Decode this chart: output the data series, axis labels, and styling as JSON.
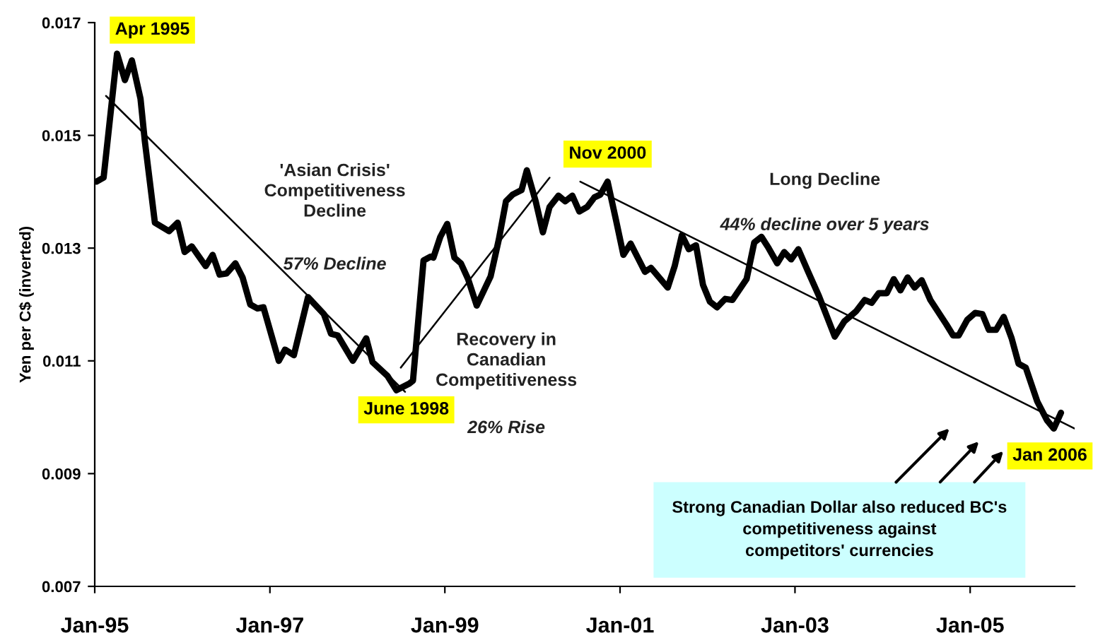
{
  "chart_data": {
    "type": "line",
    "ylabel": "Yen per C$ (inverted)",
    "xlim": [
      "1995-01-01",
      "2006-03-13"
    ],
    "xticks": [
      {
        "value": "1995-01-01",
        "label": "Jan-95"
      },
      {
        "value": "1997-01-01",
        "label": "Jan-97"
      },
      {
        "value": "1999-01-01",
        "label": "Jan-99"
      },
      {
        "value": "2001-01-01",
        "label": "Jan-01"
      },
      {
        "value": "2003-01-01",
        "label": "Jan-03"
      },
      {
        "value": "2005-01-01",
        "label": "Jan-05"
      }
    ],
    "ylim": [
      0.007,
      0.017
    ],
    "yticks": [
      0.007,
      0.009,
      0.011,
      0.013,
      0.015,
      0.017
    ],
    "grid": false,
    "legend": false,
    "marker": "none",
    "line_style": "solid",
    "series": [
      {
        "color": "#000000",
        "x": [
          "1995-01-08",
          "1995-02-07",
          "1995-04-04",
          "1995-05-07",
          "1995-06-05",
          "1995-07-11",
          "1995-07-29",
          "1995-09-09",
          "1995-11-07",
          "1995-12-13",
          "1996-01-11",
          "1996-02-10",
          "1996-04-08",
          "1996-05-07",
          "1996-06-05",
          "1996-07-04",
          "1996-08-10",
          "1996-09-09",
          "1996-10-11",
          "1996-11-10",
          "1996-12-05",
          "1997-02-07",
          "1997-03-05",
          "1997-04-11",
          "1997-06-09",
          "1997-08-14",
          "1997-09-13",
          "1997-10-11",
          "1997-12-13",
          "1998-02-07",
          "1998-03-05",
          "1998-05-07",
          "1998-06-13",
          "1998-08-07",
          "1998-08-21",
          "1998-10-04",
          "1998-11-03",
          "1998-11-14",
          "1998-12-13",
          "1999-01-11",
          "1999-02-10",
          "1999-03-09",
          "1999-04-08",
          "1999-05-14",
          "1999-07-11",
          "1999-08-14",
          "1999-09-13",
          "1999-10-11",
          "1999-11-17",
          "1999-12-09",
          "2000-01-15",
          "2000-02-14",
          "2000-03-13",
          "2000-04-19",
          "2000-05-17",
          "2000-06-16",
          "2000-07-15",
          "2000-08-17",
          "2000-09-16",
          "2000-10-11",
          "2000-11-10",
          "2000-12-16",
          "2001-01-15",
          "2001-02-14",
          "2001-03-16",
          "2001-04-15",
          "2001-05-10",
          "2001-07-19",
          "2001-08-17",
          "2001-09-16",
          "2001-10-15",
          "2001-11-14",
          "2001-12-13",
          "2002-01-11",
          "2002-02-10",
          "2002-03-16",
          "2002-04-15",
          "2002-06-13",
          "2002-07-15",
          "2002-08-14",
          "2002-09-13",
          "2002-10-19",
          "2002-11-17",
          "2002-12-16",
          "2003-01-15",
          "2003-02-25",
          "2003-04-11",
          "2003-06-16",
          "2003-07-26",
          "2003-09-13",
          "2003-10-19",
          "2003-11-17",
          "2003-12-16",
          "2004-01-19",
          "2004-02-17",
          "2004-03-16",
          "2004-04-15",
          "2004-05-14",
          "2004-06-13",
          "2004-07-19",
          "2004-09-23",
          "2004-10-22",
          "2004-11-14",
          "2004-12-20",
          "2005-01-22",
          "2005-02-21",
          "2005-03-20",
          "2005-04-19",
          "2005-05-21",
          "2005-06-23",
          "2005-07-22",
          "2005-08-21",
          "2005-10-08",
          "2005-11-17",
          "2005-12-16",
          "2006-01-15"
        ],
        "values": [
          0.01418,
          0.01425,
          0.01645,
          0.01598,
          0.01633,
          0.01565,
          0.0149,
          0.01345,
          0.0133,
          0.01345,
          0.01293,
          0.01303,
          0.01268,
          0.01288,
          0.01253,
          0.01255,
          0.01273,
          0.01248,
          0.012,
          0.01193,
          0.01195,
          0.011,
          0.0112,
          0.0111,
          0.01213,
          0.01183,
          0.01148,
          0.01145,
          0.011,
          0.0114,
          0.01098,
          0.01073,
          0.01048,
          0.0106,
          0.01065,
          0.01278,
          0.01285,
          0.01283,
          0.0132,
          0.01343,
          0.01283,
          0.01273,
          0.01245,
          0.01198,
          0.0125,
          0.01315,
          0.01383,
          0.01395,
          0.01403,
          0.01438,
          0.01383,
          0.01328,
          0.01373,
          0.01393,
          0.01383,
          0.01393,
          0.01365,
          0.01373,
          0.0139,
          0.01395,
          0.01418,
          0.01348,
          0.01288,
          0.01308,
          0.01283,
          0.01258,
          0.01265,
          0.0123,
          0.01268,
          0.01323,
          0.01298,
          0.01305,
          0.01235,
          0.01205,
          0.01195,
          0.0121,
          0.01208,
          0.01245,
          0.0131,
          0.0132,
          0.013,
          0.01273,
          0.01293,
          0.0128,
          0.01298,
          0.01258,
          0.01215,
          0.01143,
          0.0117,
          0.01188,
          0.01208,
          0.01203,
          0.0122,
          0.0122,
          0.01245,
          0.01225,
          0.01248,
          0.0123,
          0.01243,
          0.01208,
          0.01165,
          0.01145,
          0.01145,
          0.01173,
          0.01185,
          0.01183,
          0.01155,
          0.01155,
          0.01178,
          0.0114,
          0.01095,
          0.01088,
          0.01028,
          0.00995,
          0.0098,
          0.01008
        ]
      },
      {
        "type": "line",
        "color": "#000000",
        "x": [
          "1995-02-17",
          "1998-07-19"
        ],
        "values": [
          0.0157,
          0.01045
        ]
      },
      {
        "type": "line",
        "color": "#000000",
        "x": [
          "1998-07-01",
          "2000-03-13"
        ],
        "values": [
          0.01088,
          0.01425
        ]
      },
      {
        "type": "line",
        "color": "#000000",
        "x": [
          "2000-07-19",
          "2006-03-13"
        ],
        "values": [
          0.01418,
          0.0098
        ]
      }
    ],
    "annotations": [
      {
        "text": "Apr 1995",
        "x": "1995-04-04",
        "y": 0.01645
      },
      {
        "text": "June 1998",
        "x": "1998-06-13",
        "y": 0.01048
      },
      {
        "text": "Nov 2000",
        "x": "2000-11-10",
        "y": 0.01418
      },
      {
        "text": "Jan 2006",
        "x": "2005-12-16",
        "y": 0.0098
      },
      "'Asian Crisis'\nCompetitiveness\nDecline",
      "57% Decline",
      "Recovery in\nCanadian\nCompetitiveness",
      "26% Rise",
      "Long Decline",
      "44% decline over 5 years",
      "Strong Canadian Dollar also reduced BC's\ncompetitiveness against\ncompetitors' currencies"
    ]
  }
}
